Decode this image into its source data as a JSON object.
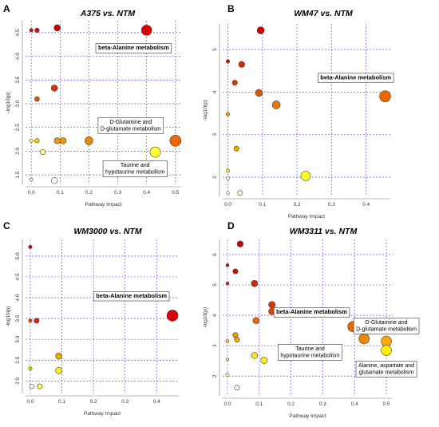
{
  "colors": {
    "grid": "#5a5aff",
    "point_outline": "#444444",
    "box_fill": "#ffffff",
    "box_stroke": "#333333"
  },
  "chart_data": [
    {
      "panel": "A",
      "type": "scatter",
      "title": "A375 vs. NTM",
      "xlabel": "Pathway Impact",
      "ylabel": "-log10(p)",
      "xlim": [
        -0.02,
        0.52
      ],
      "ylim": [
        1.3,
        4.75
      ],
      "xticks": [
        0.0,
        0.1,
        0.2,
        0.3,
        0.4,
        0.5
      ],
      "xtick_labels": [
        "0.0",
        "0.1",
        "0.2",
        "0.3",
        "0.4",
        "0.5"
      ],
      "yticks": [
        1.5,
        2.0,
        2.5,
        3.0,
        3.5,
        4.0,
        4.5
      ],
      "ytick_labels": [
        "1.5",
        "2.0",
        "2.5",
        "3.0",
        "3.5",
        "4.0",
        "4.5"
      ],
      "points": [
        {
          "x": 0.4,
          "y": 4.55,
          "r": 6.5,
          "color": "#dd0000"
        },
        {
          "x": 0.09,
          "y": 4.6,
          "r": 4.0,
          "color": "#cc0000"
        },
        {
          "x": 0.02,
          "y": 4.55,
          "r": 2.8,
          "color": "#cc1100"
        },
        {
          "x": 0.0,
          "y": 4.55,
          "r": 2.2,
          "color": "#cc1100"
        },
        {
          "x": 0.08,
          "y": 3.33,
          "r": 4.0,
          "color": "#dd3300"
        },
        {
          "x": 0.02,
          "y": 3.1,
          "r": 3.0,
          "color": "#dd5500"
        },
        {
          "x": 0.5,
          "y": 2.22,
          "r": 7.0,
          "color": "#ee6600"
        },
        {
          "x": 0.2,
          "y": 2.22,
          "r": 5.0,
          "color": "#ee8800"
        },
        {
          "x": 0.11,
          "y": 2.22,
          "r": 4.0,
          "color": "#ee9900"
        },
        {
          "x": 0.09,
          "y": 2.22,
          "r": 3.8,
          "color": "#ee9900"
        },
        {
          "x": 0.02,
          "y": 2.22,
          "r": 2.8,
          "color": "#ffcc00"
        },
        {
          "x": 0.0,
          "y": 2.22,
          "r": 2.2,
          "color": "#ffee55"
        },
        {
          "x": 0.43,
          "y": 1.98,
          "r": 6.5,
          "color": "#ffff33"
        },
        {
          "x": 0.04,
          "y": 1.98,
          "r": 3.2,
          "color": "#ffff88"
        },
        {
          "x": 0.08,
          "y": 1.38,
          "r": 3.8,
          "color": "#ffffff"
        },
        {
          "x": 0.0,
          "y": 1.4,
          "r": 2.0,
          "color": "#ffffee"
        }
      ],
      "annotations": [
        {
          "text": [
            "beta-Alanine metabolism"
          ],
          "bold": true,
          "x": 0.355,
          "y": 4.14
        },
        {
          "text": [
            "D-Glutamine and",
            "D-glutamate metabolism"
          ],
          "bold": false,
          "x": 0.345,
          "y": 2.58
        },
        {
          "text": [
            "Taurine and",
            "hypotaurine metabolism"
          ],
          "bold": false,
          "x": 0.36,
          "y": 1.67
        }
      ]
    },
    {
      "panel": "B",
      "type": "scatter",
      "title": "WM47 vs. NTM",
      "xlabel": "Pathway Impact",
      "ylabel": "-log10(p)",
      "xlim": [
        -0.015,
        0.47
      ],
      "ylim": [
        1.55,
        5.6
      ],
      "xticks": [
        0.0,
        0.1,
        0.2,
        0.3,
        0.4
      ],
      "xtick_labels": [
        "0.0",
        "0.1",
        "0.2",
        "0.3",
        "0.4"
      ],
      "yticks": [
        2,
        3,
        4,
        5
      ],
      "ytick_labels": [
        "2",
        "3",
        "4",
        "5"
      ],
      "points": [
        {
          "x": 0.095,
          "y": 5.45,
          "r": 4.5,
          "color": "#cc0000"
        },
        {
          "x": 0.04,
          "y": 4.65,
          "r": 3.8,
          "color": "#dd2200"
        },
        {
          "x": 0.0,
          "y": 4.72,
          "r": 2.2,
          "color": "#cc1100"
        },
        {
          "x": 0.02,
          "y": 4.22,
          "r": 3.2,
          "color": "#dd3300"
        },
        {
          "x": 0.09,
          "y": 3.98,
          "r": 4.5,
          "color": "#dd5500"
        },
        {
          "x": 0.14,
          "y": 3.7,
          "r": 5.0,
          "color": "#ee7700"
        },
        {
          "x": 0.455,
          "y": 3.9,
          "r": 7.0,
          "color": "#ee6600"
        },
        {
          "x": 0.0,
          "y": 3.48,
          "r": 2.2,
          "color": "#ee9900"
        },
        {
          "x": 0.025,
          "y": 2.67,
          "r": 3.2,
          "color": "#eeaa00"
        },
        {
          "x": 0.225,
          "y": 2.03,
          "r": 6.0,
          "color": "#ffff22"
        },
        {
          "x": 0.0,
          "y": 2.15,
          "r": 2.2,
          "color": "#ffee55"
        },
        {
          "x": 0.0,
          "y": 1.97,
          "r": 2.0,
          "color": "#ffffcc"
        },
        {
          "x": 0.035,
          "y": 1.63,
          "r": 3.0,
          "color": "#ffffdd"
        },
        {
          "x": 0.0,
          "y": 1.62,
          "r": 1.8,
          "color": "#ffffff"
        }
      ],
      "annotations": [
        {
          "text": [
            "beta-Alanine metabolism"
          ],
          "bold": true,
          "x": 0.37,
          "y": 4.3
        }
      ]
    },
    {
      "panel": "C",
      "type": "scatter",
      "title": "WM3000 vs. NTM",
      "xlabel": "Pathway Impact",
      "ylabel": "-log10(p)",
      "xlim": [
        -0.015,
        0.47
      ],
      "ylim": [
        1.7,
        5.4
      ],
      "xticks": [
        0.0,
        0.1,
        0.2,
        0.3,
        0.4
      ],
      "xtick_labels": [
        "0.0",
        "0.1",
        "0.2",
        "0.3",
        "0.4"
      ],
      "yticks": [
        2.0,
        2.5,
        3.0,
        3.5,
        4.0,
        4.5,
        5.0
      ],
      "ytick_labels": [
        "2.0",
        "2.5",
        "3.0",
        "3.5",
        "4.0",
        "4.5",
        "5.0"
      ],
      "points": [
        {
          "x": 0.0,
          "y": 5.22,
          "r": 2.2,
          "color": "#cc0000"
        },
        {
          "x": 0.45,
          "y": 3.57,
          "r": 7.0,
          "color": "#dd0000"
        },
        {
          "x": 0.02,
          "y": 3.45,
          "r": 3.2,
          "color": "#dd2200"
        },
        {
          "x": 0.0,
          "y": 3.45,
          "r": 2.2,
          "color": "#dd4400"
        },
        {
          "x": 0.09,
          "y": 2.6,
          "r": 4.0,
          "color": "#eeaa00"
        },
        {
          "x": 0.0,
          "y": 2.3,
          "r": 2.2,
          "color": "#ccdd00"
        },
        {
          "x": 0.09,
          "y": 2.25,
          "r": 4.0,
          "color": "#ffee22"
        },
        {
          "x": 0.03,
          "y": 1.87,
          "r": 3.2,
          "color": "#ffff66"
        },
        {
          "x": 0.005,
          "y": 1.87,
          "r": 2.8,
          "color": "#ffffff"
        }
      ],
      "annotations": [
        {
          "text": [
            "beta-Alanine metabolism"
          ],
          "bold": true,
          "x": 0.32,
          "y": 4.0
        }
      ]
    },
    {
      "panel": "D",
      "type": "scatter",
      "title": "WM3311 vs. NTM",
      "xlabel": "Pathway Impact",
      "ylabel": "-log10(p)",
      "xlim": [
        -0.015,
        0.52
      ],
      "ylim": [
        1.35,
        6.5
      ],
      "xticks": [
        0.0,
        0.1,
        0.2,
        0.3,
        0.4,
        0.5
      ],
      "xtick_labels": [
        "0.0",
        "0.1",
        "0.2",
        "0.3",
        "0.4",
        "0.5"
      ],
      "yticks": [
        2,
        3,
        4,
        5,
        6
      ],
      "ytick_labels": [
        "2",
        "3",
        "4",
        "5",
        "6"
      ],
      "points": [
        {
          "x": 0.04,
          "y": 6.35,
          "r": 3.8,
          "color": "#cc0000"
        },
        {
          "x": 0.0,
          "y": 5.65,
          "r": 2.0,
          "color": "#cc1100"
        },
        {
          "x": 0.025,
          "y": 5.45,
          "r": 3.2,
          "color": "#cc1100"
        },
        {
          "x": 0.085,
          "y": 5.05,
          "r": 4.0,
          "color": "#dd2200"
        },
        {
          "x": 0.0,
          "y": 5.05,
          "r": 2.0,
          "color": "#dd2200"
        },
        {
          "x": 0.14,
          "y": 4.35,
          "r": 4.2,
          "color": "#dd3300"
        },
        {
          "x": 0.14,
          "y": 4.13,
          "r": 4.2,
          "color": "#dd4400"
        },
        {
          "x": 0.09,
          "y": 3.83,
          "r": 4.0,
          "color": "#ee6600"
        },
        {
          "x": 0.395,
          "y": 3.63,
          "r": 6.5,
          "color": "#ee6600"
        },
        {
          "x": 0.43,
          "y": 3.23,
          "r": 6.5,
          "color": "#ee8800"
        },
        {
          "x": 0.5,
          "y": 3.15,
          "r": 6.5,
          "color": "#ffaa00"
        },
        {
          "x": 0.025,
          "y": 3.35,
          "r": 3.2,
          "color": "#ee9900"
        },
        {
          "x": 0.03,
          "y": 3.2,
          "r": 3.2,
          "color": "#eeaa00"
        },
        {
          "x": 0.0,
          "y": 3.15,
          "r": 2.0,
          "color": "#ffcc22"
        },
        {
          "x": 0.5,
          "y": 2.85,
          "r": 6.5,
          "color": "#ffee00"
        },
        {
          "x": 0.085,
          "y": 2.68,
          "r": 4.0,
          "color": "#ffdd22"
        },
        {
          "x": 0.115,
          "y": 2.52,
          "r": 4.2,
          "color": "#ffee22"
        },
        {
          "x": 0.0,
          "y": 2.05,
          "r": 2.0,
          "color": "#ffffaa"
        },
        {
          "x": 0.0,
          "y": 2.55,
          "r": 1.8,
          "color": "#ffee55"
        },
        {
          "x": 0.03,
          "y": 1.62,
          "r": 3.2,
          "color": "#ffffff"
        }
      ],
      "annotations": [
        {
          "text": [
            "beta-Alanine metabolism"
          ],
          "bold": true,
          "x": 0.265,
          "y": 4.05
        },
        {
          "text": [
            "D-Glutamine and",
            "D-glutamate metabolism"
          ],
          "bold": false,
          "x": 0.5,
          "y": 3.72
        },
        {
          "text": [
            "Taurine and",
            "hypotaurine metabolism"
          ],
          "bold": false,
          "x": 0.26,
          "y": 2.85
        },
        {
          "text": [
            "Alanine, aspartate and",
            "glutamate metabolism"
          ],
          "bold": false,
          "x": 0.5,
          "y": 2.3
        }
      ]
    }
  ]
}
